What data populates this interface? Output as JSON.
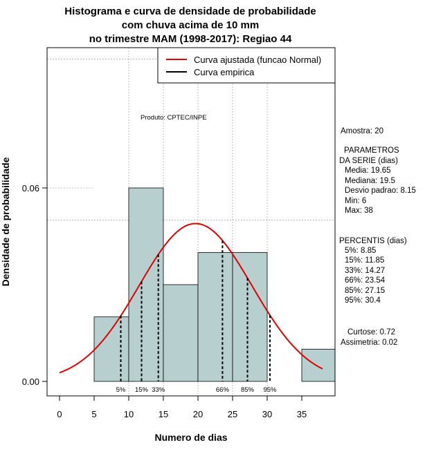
{
  "chart_data": {
    "type": "bar",
    "title_lines": [
      "Histograma e curva de densidade de probabilidade",
      "com chuva acima de 10 mm",
      "no trimestre MAM (1998-2017): Regiao 44"
    ],
    "xlabel": "Numero de dias",
    "ylabel": "Densidade de probabilidade",
    "xlim": [
      -1.8,
      39.8
    ],
    "ylim": [
      -0.0045,
      0.1035
    ],
    "x_ticks": [
      0,
      5,
      10,
      15,
      20,
      25,
      30,
      35
    ],
    "x_tick_labels": [
      "0",
      "5",
      "10",
      "15",
      "20",
      "25",
      "30",
      "35"
    ],
    "y_ticks": [
      0.0,
      0.06
    ],
    "y_tick_labels": [
      "0.00",
      "0.06"
    ],
    "grid_x": [
      10,
      15,
      20,
      25,
      30
    ],
    "grid_y": [
      0.05,
      0.1
    ],
    "grid_y_short": [
      0.06
    ],
    "bins": [
      {
        "start": 5,
        "end": 10,
        "density": 0.02
      },
      {
        "start": 10,
        "end": 15,
        "density": 0.06
      },
      {
        "start": 15,
        "end": 20,
        "density": 0.03
      },
      {
        "start": 20,
        "end": 25,
        "density": 0.04
      },
      {
        "start": 25,
        "end": 30,
        "density": 0.04
      },
      {
        "start": 30,
        "end": 35,
        "density": 0.0
      },
      {
        "start": 35,
        "end": 40,
        "density": 0.01
      }
    ],
    "normal_fit": {
      "mean": 19.65,
      "sd": 8.15,
      "x_range": [
        0,
        38
      ]
    },
    "percentiles": [
      {
        "label": "5%",
        "value": 8.85
      },
      {
        "label": "15%",
        "value": 11.85
      },
      {
        "label": "33%",
        "value": 14.27
      },
      {
        "label": "66%",
        "value": 23.54
      },
      {
        "label": "85%",
        "value": 27.15
      },
      {
        "label": "95%",
        "value": 30.4
      }
    ],
    "legend": {
      "position": "top-right",
      "items": [
        {
          "label": "Curva ajustada (funcao Normal)",
          "color": "#e00000"
        },
        {
          "label": "Curva empirica",
          "color": "#000000"
        }
      ]
    },
    "annotation": "Produto: CPTEC/INPE",
    "bar_color": "#b8cfcf",
    "curve_color": "#e00000"
  },
  "stats_panel": {
    "sample": "Amostra: 20",
    "params_header_1": "PARAMETROS",
    "params_header_2": "DA SERIE (dias)",
    "params": [
      "Media: 19.65",
      "Mediana: 19.5",
      "Desvio padrao: 8.15",
      "Min: 6",
      "Max: 38"
    ],
    "percentis_header": "PERCENTIS (dias)",
    "percentis": [
      "5%: 8.85",
      "15%: 11.85",
      "33%: 14.27",
      "66%: 23.54",
      "85%: 27.15",
      "95%: 30.4"
    ],
    "curtose": "Curtose: 0.72",
    "assimetria": "Assimetria: 0.02"
  }
}
